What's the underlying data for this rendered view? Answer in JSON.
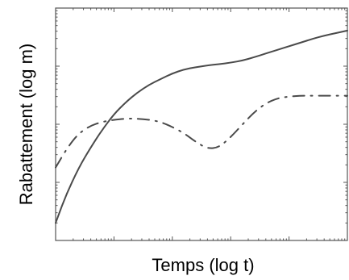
{
  "chart_data": {
    "type": "line",
    "title": "",
    "xlabel": "Temps (log t)",
    "ylabel": "Rabattement (log m)",
    "x_scale": "log",
    "y_scale": "log",
    "xlim": [
      0.1,
      10000
    ],
    "ylim": [
      1,
      10000
    ],
    "grid": false,
    "legend": "none",
    "x_tick_values": [
      1,
      10,
      100,
      1000
    ],
    "y_tick_values": [
      10,
      100,
      1000
    ],
    "tick_labels_shown": false,
    "series": [
      {
        "style": "solid",
        "color": "#4a4a4a",
        "x": [
          0.1,
          0.15,
          0.25,
          0.4,
          0.6,
          1,
          1.6,
          2.5,
          4,
          6.3,
          10,
          16,
          25,
          40,
          63,
          100,
          160,
          250,
          400,
          630,
          1000,
          1600,
          2500,
          4000,
          6300,
          10000
        ],
        "y": [
          2,
          6,
          18,
          40,
          75,
          150,
          240,
          350,
          480,
          600,
          750,
          880,
          960,
          1030,
          1080,
          1150,
          1250,
          1420,
          1650,
          1900,
          2200,
          2550,
          2950,
          3350,
          3700,
          4100
        ]
      },
      {
        "style": "dashdot",
        "color": "#4a4a4a",
        "x": [
          0.1,
          0.16,
          0.25,
          0.4,
          0.63,
          1,
          1.6,
          2.5,
          4,
          6.3,
          10,
          16,
          25,
          40,
          63,
          100,
          160,
          250,
          400,
          630,
          1000,
          1600,
          2500,
          4000,
          6300,
          10000
        ],
        "y": [
          18,
          40,
          70,
          95,
          110,
          120,
          125,
          125,
          120,
          110,
          90,
          70,
          50,
          38,
          40,
          60,
          100,
          160,
          230,
          280,
          300,
          310,
          310,
          310,
          310,
          310
        ]
      }
    ]
  }
}
